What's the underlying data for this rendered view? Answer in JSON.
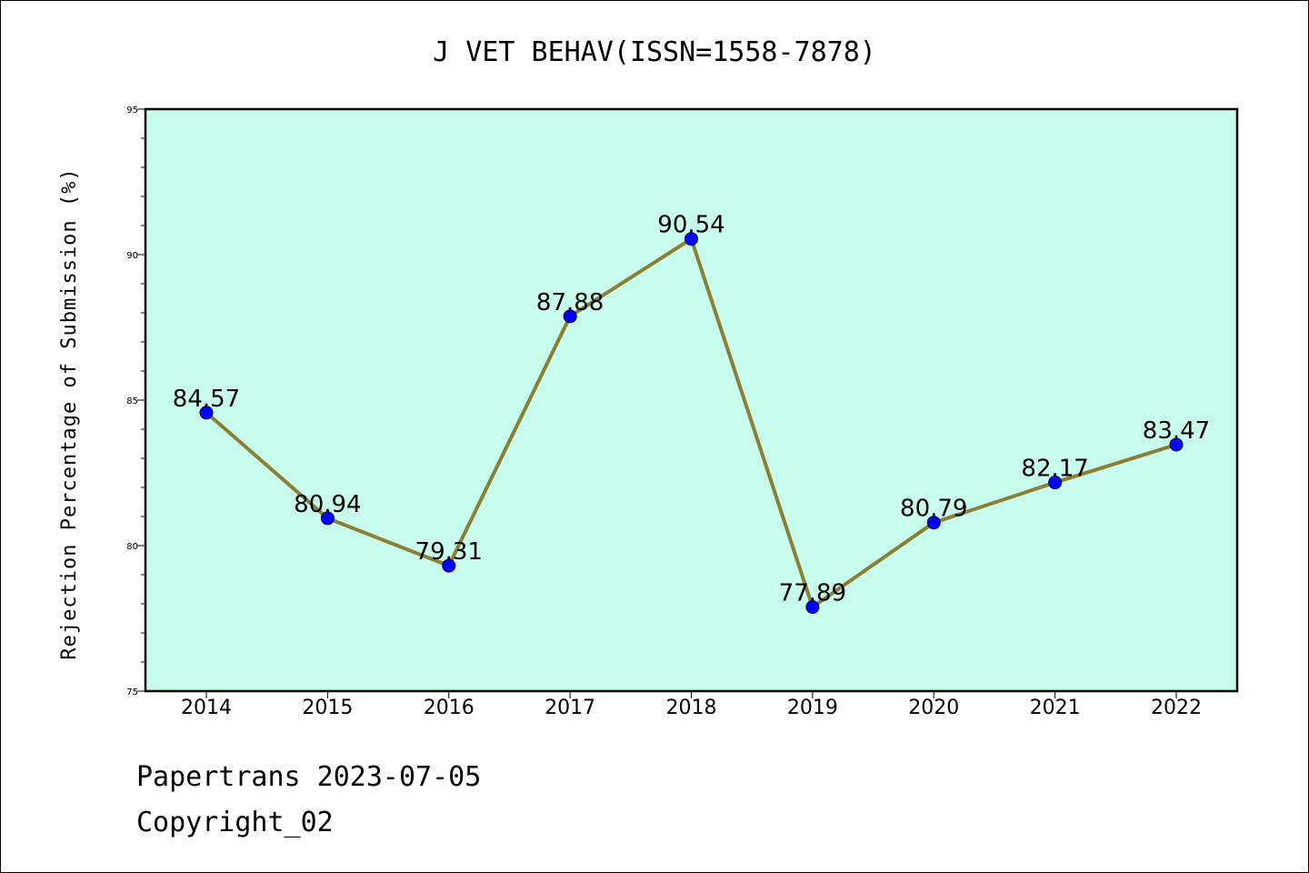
{
  "chart_data": {
    "type": "line",
    "title": "J VET BEHAV(ISSN=1558-7878)",
    "ylabel": "Rejection Percentage of Submission (%)",
    "xlabel": "",
    "categories": [
      "2014",
      "2015",
      "2016",
      "2017",
      "2018",
      "2019",
      "2020",
      "2021",
      "2022"
    ],
    "values": [
      84.57,
      80.94,
      79.31,
      87.88,
      90.54,
      77.89,
      80.79,
      82.17,
      83.47
    ],
    "data_labels": [
      "84.57",
      "80.94",
      "79.31",
      "87.88",
      "90.54",
      "77.89",
      "80.79",
      "82.17",
      "83.47"
    ],
    "ylim": [
      75,
      95
    ],
    "yticks": [
      "75",
      "80",
      "85",
      "90",
      "95"
    ],
    "grid": false,
    "colors": {
      "plot_background": "#c7fbec",
      "line": "#8b7e35",
      "marker": "#0000ff"
    }
  },
  "footer": {
    "line1": "Papertrans 2023-07-05",
    "line2": "Copyright_02"
  }
}
